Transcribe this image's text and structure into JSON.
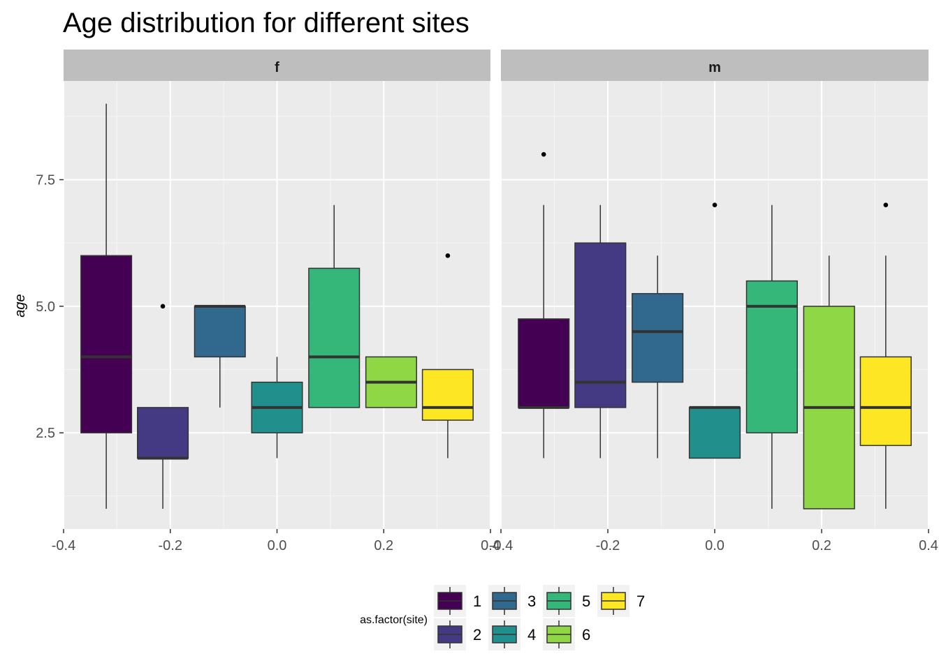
{
  "chart_data": {
    "type": "boxplot",
    "title": "Age distribution for different sites",
    "xlabel": "",
    "ylabel": "age",
    "xlim": [
      -0.4,
      0.4
    ],
    "ylim": [
      0.6,
      9.45
    ],
    "x_ticks": [
      "-0.4",
      "-0.2",
      "0.0",
      "0.2",
      "0.4"
    ],
    "x_tick_values": [
      -0.4,
      -0.2,
      0.0,
      0.2,
      0.4
    ],
    "y_ticks": [
      "2.5",
      "5.0",
      "7.5"
    ],
    "y_tick_values": [
      2.5,
      5.0,
      7.5
    ],
    "grid": true,
    "legend": {
      "title": "as.factor(site)",
      "position": "bottom",
      "entries": [
        "1",
        "2",
        "3",
        "4",
        "5",
        "6",
        "7"
      ]
    },
    "colors": {
      "1": "#440154",
      "2": "#443A83",
      "3": "#31688E",
      "4": "#21908C",
      "5": "#35B779",
      "6": "#8FD744",
      "7": "#FDE725"
    },
    "panels": [
      {
        "strip": "f",
        "boxes": [
          {
            "site": "1",
            "x": -0.32,
            "min": 1.0,
            "q1": 2.5,
            "median": 4.0,
            "q3": 6.0,
            "max": 9.0,
            "outliers": []
          },
          {
            "site": "2",
            "x": -0.214,
            "min": 1.0,
            "q1": 2.0,
            "median": 2.0,
            "q3": 3.0,
            "max": 3.0,
            "outliers": [
              5.0
            ]
          },
          {
            "site": "3",
            "x": -0.107,
            "min": 3.0,
            "q1": 4.0,
            "median": 5.0,
            "q3": 5.0,
            "max": 5.0,
            "outliers": []
          },
          {
            "site": "4",
            "x": 0.0,
            "min": 2.0,
            "q1": 2.5,
            "median": 3.0,
            "q3": 3.5,
            "max": 4.0,
            "outliers": []
          },
          {
            "site": "5",
            "x": 0.107,
            "min": 3.0,
            "q1": 3.0,
            "median": 4.0,
            "q3": 5.75,
            "max": 7.0,
            "outliers": []
          },
          {
            "site": "6",
            "x": 0.214,
            "min": 3.0,
            "q1": 3.0,
            "median": 3.5,
            "q3": 4.0,
            "max": 4.0,
            "outliers": []
          },
          {
            "site": "7",
            "x": 0.32,
            "min": 2.0,
            "q1": 2.75,
            "median": 3.0,
            "q3": 3.75,
            "max": 3.75,
            "outliers": [
              6.0
            ]
          }
        ]
      },
      {
        "strip": "m",
        "boxes": [
          {
            "site": "1",
            "x": -0.32,
            "min": 2.0,
            "q1": 3.0,
            "median": 3.0,
            "q3": 4.75,
            "max": 7.0,
            "outliers": [
              8.0
            ]
          },
          {
            "site": "2",
            "x": -0.214,
            "min": 2.0,
            "q1": 3.0,
            "median": 3.5,
            "q3": 6.25,
            "max": 7.0,
            "outliers": []
          },
          {
            "site": "3",
            "x": -0.107,
            "min": 2.0,
            "q1": 3.5,
            "median": 4.5,
            "q3": 5.25,
            "max": 6.0,
            "outliers": []
          },
          {
            "site": "4",
            "x": 0.0,
            "min": 2.0,
            "q1": 2.0,
            "median": 3.0,
            "q3": 3.0,
            "max": 3.0,
            "outliers": [
              7.0
            ]
          },
          {
            "site": "5",
            "x": 0.107,
            "min": 1.0,
            "q1": 2.5,
            "median": 5.0,
            "q3": 5.5,
            "max": 7.0,
            "outliers": []
          },
          {
            "site": "6",
            "x": 0.214,
            "min": 1.0,
            "q1": 1.0,
            "median": 3.0,
            "q3": 5.0,
            "max": 6.0,
            "outliers": []
          },
          {
            "site": "7",
            "x": 0.32,
            "min": 1.0,
            "q1": 2.25,
            "median": 3.0,
            "q3": 4.0,
            "max": 6.0,
            "outliers": [
              7.0
            ]
          }
        ]
      }
    ]
  }
}
